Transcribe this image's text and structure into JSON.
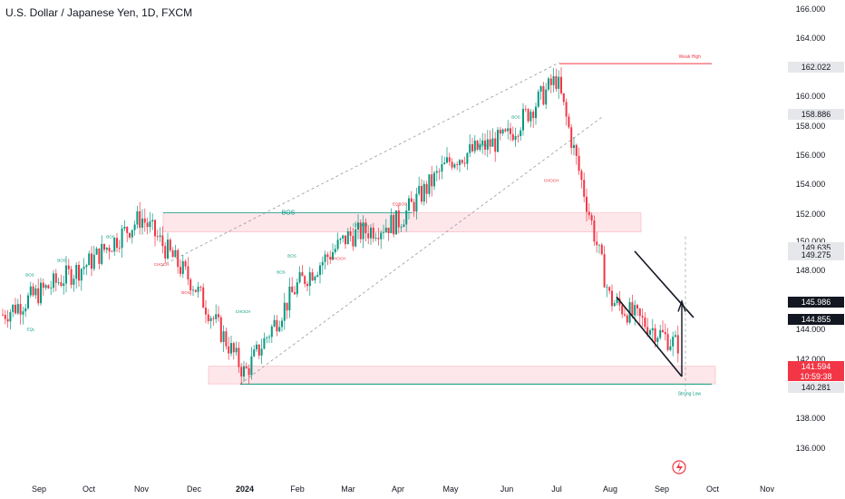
{
  "header": {
    "title": "U.S. Dollar / Japanese Yen, 1D, FXCM"
  },
  "colors": {
    "up": "#089981",
    "down": "#f23645",
    "zone_fill": "#fde7ea",
    "zone_stroke": "#f7b4bd",
    "channel": "#9598a1",
    "level_red": "#f23645",
    "level_teal": "#089981",
    "label_bg": "#e6e7ea",
    "tag_dark": "#131722",
    "tag_red": "#f23645"
  },
  "chart_data": {
    "type": "candlestick",
    "symbol": "U.S. Dollar / Japanese Yen",
    "interval": "1D",
    "source": "FXCM",
    "ylim": [
      134.2,
      166.9
    ],
    "y_ticks": [
      136.0,
      138.0,
      140.0,
      142.0,
      144.0,
      146.0,
      148.0,
      150.0,
      152.0,
      154.0,
      156.0,
      158.0,
      160.0,
      162.0,
      164.0,
      166.0
    ],
    "x_ticks": [
      "Sep",
      "Oct",
      "Nov",
      "Dec",
      "2024",
      "Feb",
      "Mar",
      "Apr",
      "May",
      "Jun",
      "Jul",
      "Aug",
      "Sep",
      "Oct",
      "Nov"
    ],
    "price_path": [
      [
        "Sep",
        145.0
      ],
      [
        "Oct",
        148.5
      ],
      [
        "Nov",
        151.6
      ],
      [
        "Dec",
        147.0
      ],
      [
        "2024",
        141.0
      ],
      [
        "Feb",
        147.0
      ],
      [
        "Mar",
        150.3
      ],
      [
        "Apr",
        151.3
      ],
      [
        "May",
        155.5
      ],
      [
        "Jun",
        157.0
      ],
      [
        "Jul",
        161.0
      ],
      [
        "Aug",
        146.0
      ],
      [
        "Sep",
        143.0
      ]
    ],
    "price_labels": [
      {
        "value": "162.022",
        "style": "plain"
      },
      {
        "value": "158.886",
        "style": "plain"
      },
      {
        "value": "149.635",
        "style": "plain"
      },
      {
        "value": "149.275",
        "style": "plain"
      },
      {
        "value": "145.986",
        "style": "dark"
      },
      {
        "value": "144.855",
        "style": "dark"
      },
      {
        "value": "141.594",
        "style": "red",
        "countdown": "10:59:38"
      },
      {
        "value": "140.281",
        "style": "plain"
      }
    ],
    "levels": [
      {
        "price": 162.022,
        "label": "Weak High",
        "color": "red"
      },
      {
        "price": 140.281,
        "label": "Strong Low",
        "color": "teal"
      }
    ],
    "zones": [
      {
        "from": 150.6,
        "to": 151.9,
        "start": "Nov",
        "end": "Aug"
      },
      {
        "from": 140.3,
        "to": 141.5,
        "start": "Dec",
        "end": "Sep"
      }
    ],
    "structure_labels": [
      {
        "text": "BOS",
        "price": 151.8,
        "color": "teal"
      },
      {
        "text": "BOS",
        "price": 150.2,
        "color": "teal"
      },
      {
        "text": "BOS",
        "price": 148.6,
        "color": "teal"
      },
      {
        "text": "BOS",
        "price": 147.6,
        "color": "teal"
      },
      {
        "text": "EQL",
        "price": 143.9,
        "color": "teal"
      },
      {
        "text": "CHOCH",
        "price": 148.3,
        "color": "red"
      },
      {
        "text": "BOS",
        "price": 146.4,
        "color": "red"
      },
      {
        "text": "CHOCH",
        "price": 145.1,
        "color": "teal"
      },
      {
        "text": "BOS",
        "price": 148.9,
        "color": "teal"
      },
      {
        "text": "BOS",
        "price": 147.8,
        "color": "teal"
      },
      {
        "text": "CHOCH",
        "price": 151.0,
        "color": "teal"
      },
      {
        "text": "CHOCH",
        "price": 148.7,
        "color": "red"
      },
      {
        "text": "EQBOS",
        "price": 152.4,
        "color": "red"
      },
      {
        "text": "BOS",
        "price": 156.4,
        "color": "teal"
      },
      {
        "text": "BOS",
        "price": 158.3,
        "color": "teal"
      },
      {
        "text": "CHOCH",
        "price": 154.0,
        "color": "red"
      }
    ]
  }
}
